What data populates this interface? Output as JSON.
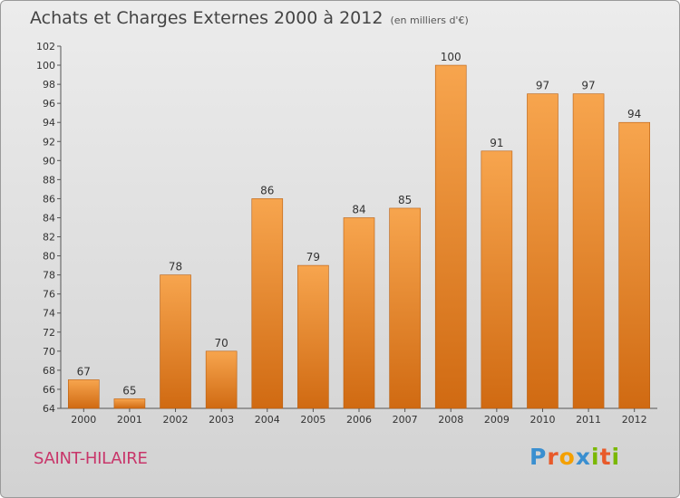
{
  "title": "Achats et Charges Externes 2000 à 2012",
  "subtitle": "(en milliers d'€)",
  "commune": "SAINT-HILAIRE",
  "logo": {
    "text": "Proxiti",
    "letter_colors": [
      "#3a8fd0",
      "#e85a2a",
      "#f4a000",
      "#3a8fd0",
      "#7ab800",
      "#e85a2a",
      "#7ab800"
    ]
  },
  "colors": {
    "bar_top": "#f7a54e",
    "bar_bottom": "#d06a12",
    "axis": "#555555",
    "grid_tick": "#888888"
  },
  "chart_data": {
    "type": "bar",
    "categories": [
      "2000",
      "2001",
      "2002",
      "2003",
      "2004",
      "2005",
      "2006",
      "2007",
      "2008",
      "2009",
      "2010",
      "2011",
      "2012"
    ],
    "values": [
      67,
      65,
      78,
      70,
      86,
      79,
      84,
      85,
      100,
      91,
      97,
      97,
      94
    ],
    "ylim": [
      64,
      102
    ],
    "yticks": [
      64,
      66,
      68,
      70,
      72,
      74,
      76,
      78,
      80,
      82,
      84,
      86,
      88,
      90,
      92,
      94,
      96,
      98,
      100,
      102
    ],
    "grid": false,
    "xlabel": "",
    "ylabel": ""
  }
}
